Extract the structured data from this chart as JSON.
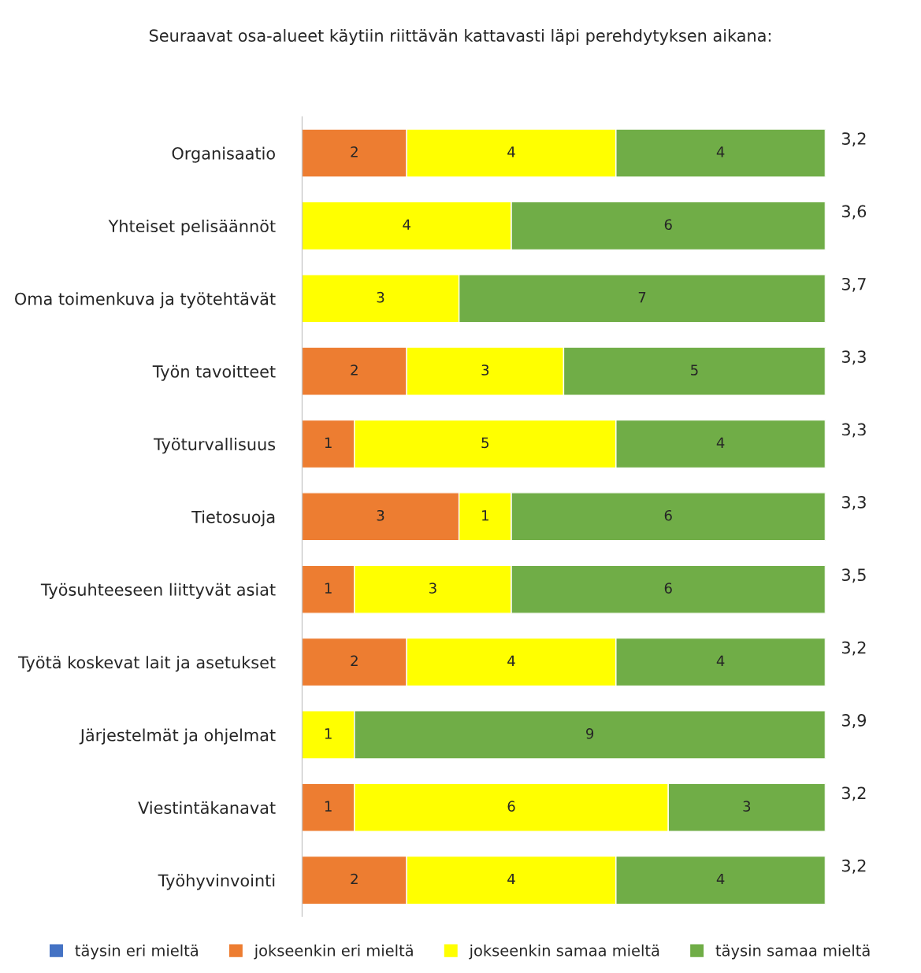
{
  "chart_data": {
    "type": "bar",
    "orientation": "horizontal",
    "stacked": true,
    "title": "Seuraavat osa-alueet käytiin riittävän kattavasti läpi perehdytyksen aikana:",
    "categories": [
      "Organisaatio",
      "Yhteiset pelisäännöt",
      "Oma toimenkuva ja työtehtävät",
      "Työn tavoitteet",
      "Työturvallisuus",
      "Tietosuoja",
      "Työsuhteeseen liittyvät asiat",
      "Työtä koskevat lait ja asetukset",
      "Järjestelmät ja ohjelmat",
      "Viestintäkanavat",
      "Työhyvinvointi"
    ],
    "series": [
      {
        "name": "täysin eri mieltä",
        "color": "#4472c4",
        "values": [
          null,
          null,
          null,
          null,
          null,
          null,
          null,
          null,
          null,
          null,
          null
        ]
      },
      {
        "name": "jokseenkin eri mieltä",
        "color": "#ed7d31",
        "values": [
          2,
          null,
          null,
          2,
          1,
          3,
          1,
          2,
          null,
          1,
          2
        ]
      },
      {
        "name": "jokseenkin samaa mieltä",
        "color": "#ffff00",
        "values": [
          4,
          4,
          3,
          3,
          5,
          1,
          3,
          4,
          1,
          6,
          4
        ]
      },
      {
        "name": "täysin samaa mieltä",
        "color": "#70ad47",
        "values": [
          4,
          6,
          7,
          5,
          4,
          6,
          6,
          4,
          9,
          3,
          4
        ]
      }
    ],
    "xlim": [
      0,
      10
    ],
    "data_labels": true,
    "legend": "bottom",
    "grid": false,
    "tick_labels": "y",
    "annotations": [
      "3,2",
      "3,6",
      "3,7",
      "3,3",
      "3,3",
      "3,3",
      "3,5",
      "3,2",
      "3,9",
      "3,2",
      "3,2"
    ]
  }
}
